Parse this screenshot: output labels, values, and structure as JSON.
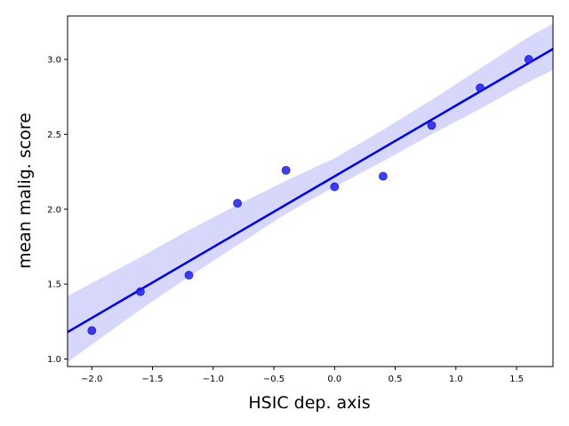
{
  "chart_data": {
    "type": "scatter",
    "xlabel": "HSIC dep. axis",
    "ylabel": "mean malig. score",
    "xlim": [
      -2.2,
      1.8
    ],
    "ylim": [
      0.95,
      3.29
    ],
    "grid": false,
    "x_ticks": [
      "−2.0",
      "−1.5",
      "−1.0",
      "−0.5",
      "0.0",
      "0.5",
      "1.0",
      "1.5"
    ],
    "y_ticks": [
      "1.0",
      "1.5",
      "2.0",
      "2.5",
      "3.0"
    ],
    "x_tick_values": [
      -2.0,
      -1.5,
      -1.0,
      -0.5,
      0.0,
      0.5,
      1.0,
      1.5
    ],
    "y_tick_values": [
      1.0,
      1.5,
      2.0,
      2.5,
      3.0
    ],
    "series": [
      {
        "x": [
          -2.0,
          -1.6,
          -1.2,
          -0.8,
          -0.4,
          0.0,
          0.4,
          0.8,
          1.2,
          1.6
        ],
        "y": [
          1.19,
          1.45,
          1.56,
          2.04,
          2.26,
          2.15,
          2.22,
          2.56,
          2.81,
          3.0
        ]
      }
    ],
    "regression": {
      "x": [
        -2.2,
        1.8
      ],
      "y": [
        1.18,
        3.07
      ],
      "ci_band": {
        "x": [
          -2.2,
          -1.6,
          -1.2,
          -0.8,
          -0.4,
          0.0,
          0.4,
          0.8,
          1.2,
          1.6,
          1.8
        ],
        "lower": [
          0.98,
          1.33,
          1.55,
          1.76,
          1.97,
          2.15,
          2.32,
          2.5,
          2.67,
          2.85,
          2.93
        ],
        "upper": [
          1.42,
          1.68,
          1.86,
          2.03,
          2.19,
          2.34,
          2.53,
          2.73,
          2.94,
          3.15,
          3.24
        ]
      }
    },
    "colors": {
      "points": "#1f1fe6",
      "line": "#0000e6",
      "band": "#d7d7fc"
    }
  }
}
